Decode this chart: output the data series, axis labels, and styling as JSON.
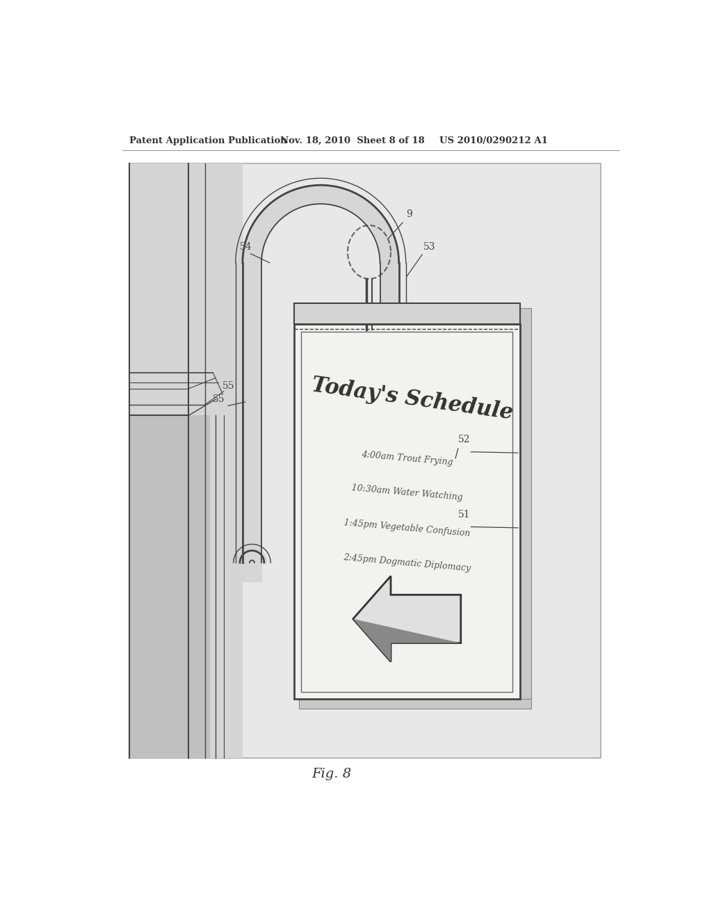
{
  "bg_color": "#ffffff",
  "drawing_bg": "#e8e8e8",
  "header_text1": "Patent Application Publication",
  "header_text2": "Nov. 18, 2010  Sheet 8 of 18",
  "header_text3": "US 2010/0290212 A1",
  "fig_label": "Fig. 8",
  "line_color": "#444444",
  "light_gray": "#cccccc",
  "medium_gray": "#aaaaaa",
  "schedule_lines": [
    "4:00am Trout Frying",
    "10:30am Water Watching",
    "1:45pm Vegetable Confusion",
    "2:45pm Dogmatic Diplomacy"
  ]
}
